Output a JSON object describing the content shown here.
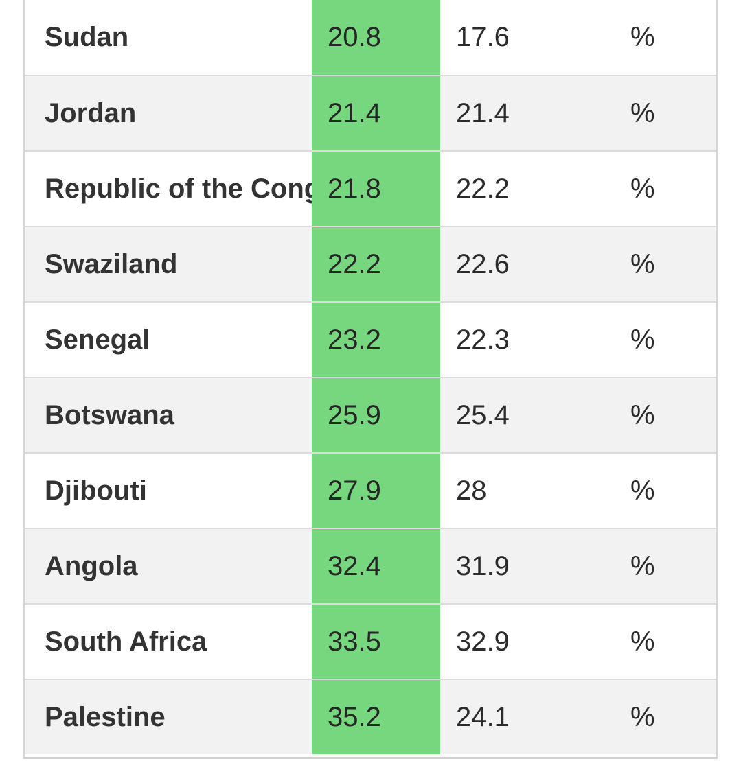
{
  "table": {
    "rows": [
      {
        "country": "Sudan",
        "value": "20.8",
        "value2": "17.6",
        "unit": "%"
      },
      {
        "country": "Jordan",
        "value": "21.4",
        "value2": "21.4",
        "unit": "%"
      },
      {
        "country": "Republic of the Cong",
        "value": "21.8",
        "value2": "22.2",
        "unit": "%"
      },
      {
        "country": "Swaziland",
        "value": "22.2",
        "value2": "22.6",
        "unit": "%"
      },
      {
        "country": "Senegal",
        "value": "23.2",
        "value2": "22.3",
        "unit": "%"
      },
      {
        "country": "Botswana",
        "value": "25.9",
        "value2": "25.4",
        "unit": "%"
      },
      {
        "country": "Djibouti",
        "value": "27.9",
        "value2": "28",
        "unit": "%"
      },
      {
        "country": "Angola",
        "value": "32.4",
        "value2": "31.9",
        "unit": "%"
      },
      {
        "country": "South Africa",
        "value": "33.5",
        "value2": "32.9",
        "unit": "%"
      },
      {
        "country": "Palestine",
        "value": "35.2",
        "value2": "24.1",
        "unit": "%"
      }
    ],
    "colors": {
      "highlight": "#77d77f",
      "row_alt": "#f2f2f2",
      "row": "#ffffff",
      "text": "#2b2b2b"
    }
  }
}
